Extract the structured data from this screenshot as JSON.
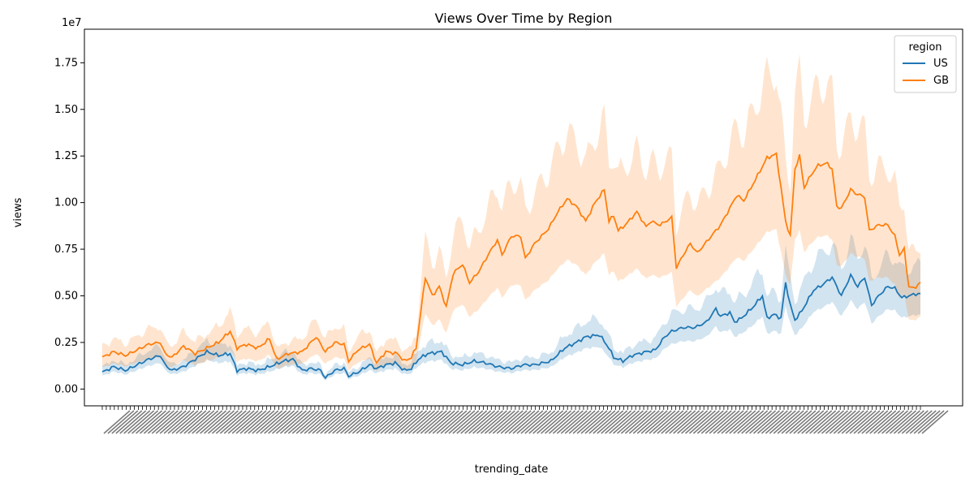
{
  "chart_data": {
    "type": "line",
    "title": "Views Over Time by Region",
    "xlabel": "trending_date",
    "ylabel": "views",
    "y_offset_text": "1e7",
    "y_ticks": [
      0.0,
      0.25,
      0.5,
      0.75,
      1.0,
      1.25,
      1.5,
      1.75
    ],
    "y_tick_labels": [
      "0.00",
      "0.25",
      "0.50",
      "0.75",
      "1.00",
      "1.25",
      "1.50",
      "1.75"
    ],
    "ylim": [
      -0.09,
      1.93
    ],
    "x_count": 205,
    "x_tick_rotation": -45,
    "legend": {
      "title": "region",
      "position": "top-right"
    },
    "grid": false,
    "series": [
      {
        "name": "US",
        "color": "#1f77b4",
        "band_color": "#1f77b4",
        "knots": [
          [
            0,
            0.09
          ],
          [
            5,
            0.12
          ],
          [
            10,
            0.1
          ],
          [
            15,
            0.13
          ],
          [
            20,
            0.16
          ],
          [
            25,
            0.18
          ],
          [
            27,
            0.13
          ],
          [
            30,
            0.1
          ],
          [
            35,
            0.12
          ],
          [
            40,
            0.16
          ],
          [
            45,
            0.2
          ],
          [
            50,
            0.18
          ],
          [
            55,
            0.19
          ],
          [
            58,
            0.1
          ],
          [
            62,
            0.11
          ],
          [
            67,
            0.1
          ],
          [
            72,
            0.12
          ],
          [
            78,
            0.15
          ],
          [
            82,
            0.16
          ],
          [
            86,
            0.1
          ],
          [
            90,
            0.11
          ],
          [
            94,
            0.1
          ],
          [
            96,
            0.06
          ],
          [
            100,
            0.1
          ],
          [
            104,
            0.11
          ],
          [
            106,
            0.07
          ],
          [
            110,
            0.09
          ],
          [
            115,
            0.13
          ],
          [
            118,
            0.11
          ],
          [
            122,
            0.13
          ],
          [
            126,
            0.14
          ],
          [
            130,
            0.1
          ],
          [
            133,
            0.11
          ],
          [
            136,
            0.16
          ],
          [
            140,
            0.19
          ],
          [
            146,
            0.2
          ],
          [
            150,
            0.14
          ],
          [
            155,
            0.13
          ],
          [
            160,
            0.15
          ],
          [
            165,
            0.14
          ],
          [
            170,
            0.12
          ],
          [
            176,
            0.11
          ],
          [
            181,
            0.13
          ],
          [
            186,
            0.13
          ],
          [
            193,
            0.15
          ],
          [
            199,
            0.22
          ],
          [
            204,
            0.25
          ],
          [
            208,
            0.28
          ],
          [
            214,
            0.29
          ],
          [
            218,
            0.22
          ],
          [
            220,
            0.17
          ],
          [
            224,
            0.15
          ],
          [
            228,
            0.18
          ],
          [
            234,
            0.2
          ],
          [
            238,
            0.21
          ],
          [
            242,
            0.28
          ],
          [
            245,
            0.31
          ],
          [
            250,
            0.33
          ],
          [
            255,
            0.33
          ],
          [
            260,
            0.36
          ],
          [
            264,
            0.43
          ],
          [
            266,
            0.39
          ],
          [
            270,
            0.41
          ],
          [
            272,
            0.36
          ],
          [
            275,
            0.38
          ],
          [
            280,
            0.44
          ],
          [
            284,
            0.5
          ],
          [
            286,
            0.38
          ],
          [
            289,
            0.4
          ],
          [
            292,
            0.38
          ],
          [
            294,
            0.57
          ],
          [
            296,
            0.45
          ],
          [
            298,
            0.37
          ],
          [
            301,
            0.42
          ],
          [
            306,
            0.53
          ],
          [
            310,
            0.56
          ],
          [
            314,
            0.6
          ],
          [
            318,
            0.5
          ],
          [
            322,
            0.61
          ],
          [
            325,
            0.55
          ],
          [
            328,
            0.6
          ],
          [
            331,
            0.45
          ],
          [
            334,
            0.5
          ],
          [
            338,
            0.55
          ],
          [
            341,
            0.54
          ],
          [
            344,
            0.49
          ],
          [
            347,
            0.5
          ],
          [
            350,
            0.51
          ],
          [
            352,
            0.51
          ]
        ],
        "lower_ratio": 0.78,
        "upper_ratio": 1.3
      },
      {
        "name": "GB",
        "color": "#ff7f0e",
        "band_color": "#ff7f0e",
        "knots": [
          [
            0,
            0.17
          ],
          [
            5,
            0.2
          ],
          [
            10,
            0.18
          ],
          [
            15,
            0.21
          ],
          [
            20,
            0.24
          ],
          [
            25,
            0.25
          ],
          [
            27,
            0.19
          ],
          [
            30,
            0.17
          ],
          [
            35,
            0.23
          ],
          [
            40,
            0.19
          ],
          [
            45,
            0.22
          ],
          [
            50,
            0.25
          ],
          [
            55,
            0.31
          ],
          [
            58,
            0.22
          ],
          [
            62,
            0.24
          ],
          [
            67,
            0.22
          ],
          [
            72,
            0.27
          ],
          [
            75,
            0.16
          ],
          [
            80,
            0.19
          ],
          [
            86,
            0.2
          ],
          [
            92,
            0.28
          ],
          [
            96,
            0.2
          ],
          [
            100,
            0.25
          ],
          [
            104,
            0.24
          ],
          [
            106,
            0.15
          ],
          [
            110,
            0.21
          ],
          [
            115,
            0.24
          ],
          [
            118,
            0.14
          ],
          [
            122,
            0.2
          ],
          [
            127,
            0.19
          ],
          [
            130,
            0.15
          ],
          [
            133,
            0.17
          ],
          [
            135,
            0.22
          ],
          [
            139,
            0.6
          ],
          [
            142,
            0.5
          ],
          [
            145,
            0.55
          ],
          [
            148,
            0.44
          ],
          [
            151,
            0.62
          ],
          [
            155,
            0.67
          ],
          [
            158,
            0.57
          ],
          [
            162,
            0.63
          ],
          [
            166,
            0.72
          ],
          [
            170,
            0.8
          ],
          [
            172,
            0.72
          ],
          [
            176,
            0.82
          ],
          [
            180,
            0.82
          ],
          [
            182,
            0.7
          ],
          [
            186,
            0.78
          ],
          [
            192,
            0.86
          ],
          [
            196,
            0.95
          ],
          [
            200,
            1.02
          ],
          [
            204,
            0.98
          ],
          [
            208,
            0.9
          ],
          [
            212,
            1.0
          ],
          [
            216,
            1.07
          ],
          [
            218,
            0.9
          ],
          [
            220,
            0.93
          ],
          [
            222,
            0.85
          ],
          [
            225,
            0.88
          ],
          [
            230,
            0.95
          ],
          [
            234,
            0.87
          ],
          [
            236,
            0.9
          ],
          [
            240,
            0.88
          ],
          [
            245,
            0.92
          ],
          [
            247,
            0.65
          ],
          [
            250,
            0.72
          ],
          [
            253,
            0.78
          ],
          [
            256,
            0.73
          ],
          [
            262,
            0.82
          ],
          [
            266,
            0.88
          ],
          [
            270,
            0.97
          ],
          [
            273,
            1.04
          ],
          [
            276,
            1.01
          ],
          [
            280,
            1.1
          ],
          [
            283,
            1.17
          ],
          [
            286,
            1.24
          ],
          [
            290,
            1.26
          ],
          [
            292,
            1.08
          ],
          [
            294,
            0.9
          ],
          [
            296,
            0.82
          ],
          [
            298,
            1.18
          ],
          [
            300,
            1.25
          ],
          [
            302,
            1.08
          ],
          [
            305,
            1.15
          ],
          [
            308,
            1.2
          ],
          [
            312,
            1.21
          ],
          [
            314,
            1.18
          ],
          [
            316,
            0.98
          ],
          [
            318,
            0.97
          ],
          [
            322,
            1.07
          ],
          [
            324,
            1.05
          ],
          [
            328,
            1.03
          ],
          [
            330,
            0.85
          ],
          [
            334,
            0.88
          ],
          [
            338,
            0.88
          ],
          [
            341,
            0.82
          ],
          [
            343,
            0.72
          ],
          [
            345,
            0.75
          ],
          [
            347,
            0.55
          ],
          [
            349,
            0.54
          ],
          [
            352,
            0.57
          ]
        ],
        "lower_ratio": 0.68,
        "upper_ratio": 1.35
      }
    ]
  }
}
